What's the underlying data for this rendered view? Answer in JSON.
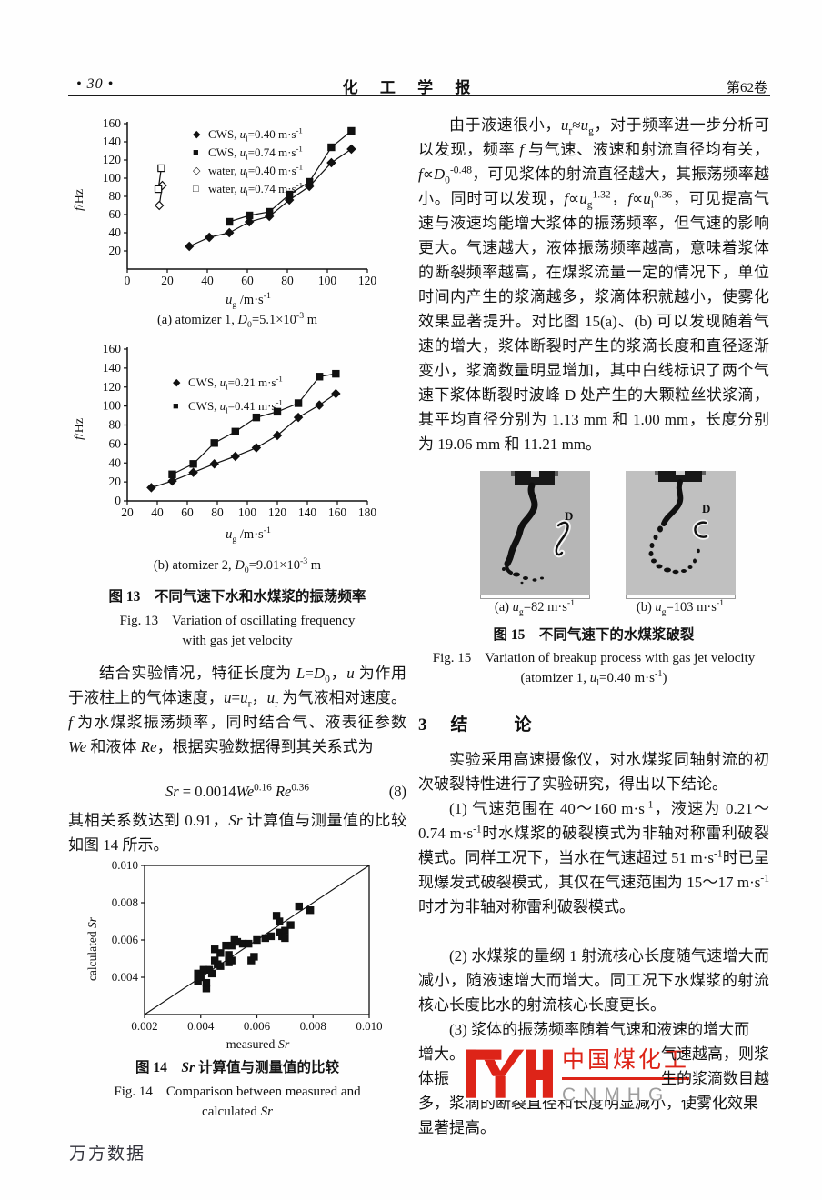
{
  "header": {
    "page_number": "• 30 •",
    "journal_title": "化 工 学 报",
    "volume": "第62卷"
  },
  "left_column": {
    "fig13": {
      "sub_a_html": "(a) atomizer 1, <i>D</i><sub>0</sub>=5.1×10<sup>-3</sup> m",
      "sub_b_html": "(b) atomizer 2, <i>D</i><sub>0</sub>=9.01×10<sup>-3</sup> m",
      "caption_zh": "图 13　不同气速下水和水煤浆的振荡频率",
      "caption_en_1": "Fig. 13　Variation of oscillating frequency",
      "caption_en_2": "with gas jet velocity"
    },
    "para1_html": "结合实验情况，特征长度为 <i>L</i>=<i>D</i><sub>0</sub>，<i>u</i> 为作用于液柱上的气体速度，<i>u</i>=<i>u</i><sub>r</sub>，<i>u</i><sub>r</sub> 为气液相对速度。<i>f</i> 为水煤浆振荡频率，同时结合气、液表征参数 <i>We</i> 和液体 <i>Re</i>，根据实验数据得到其关系式为",
    "equation": {
      "body_html": "<i>Sr</i> = 0.0014<i>We</i><sup>0.16</sup> <i>Re</i><sup>0.36</sup>",
      "number": "(8)"
    },
    "para2_html": "其相关系数达到 0.91，<i>Sr</i> 计算值与测量值的比较如图 14 所示。",
    "fig14": {
      "caption_zh_html": "图 14　<i>Sr</i> 计算值与测量值的比较",
      "caption_en_1": "Fig. 14　Comparison between measured and",
      "caption_en_2_html": "calculated <i>Sr</i>"
    }
  },
  "right_column": {
    "para1_html": "由于液速很小，<i>u</i><sub>r</sub>≈<i>u</i><sub>g</sub>，对于频率进一步分析可以发现，频率 <i>f</i> 与气速、液速和射流直径均有关，<i>f</i>∝<i>D</i><sub>0</sub><sup>-0.48</sup>，可见浆体的射流直径越大，其振荡频率越小。同时可以发现，<i>f</i>∝<i>u</i><sub>g</sub><sup>1.32</sup>，<i>f</i>∝<i>u</i><sub>l</sub><sup>0.36</sup>，可见提高气速与液速均能增大浆体的振荡频率，但气速的影响更大。气速越大，液体振荡频率越高，意味着浆体的断裂频率越高，在煤浆流量一定的情况下，单位时间内产生的浆滴越多，浆滴体积就越小，使雾化效果显著提升。对比图 15(a)、(b) 可以发现随着气速的增大，浆体断裂时产生的浆滴长度和直径逐渐变小，浆滴数量明显增加，其中白线标识了两个气速下浆体断裂时波峰 D 处产生的大颗粒丝状浆滴，其平均直径分别为 1.13 mm 和 1.00 mm，长度分别为 19.06 mm 和 11.21 mm。",
    "fig15": {
      "photo_d_label": "D",
      "sub_a_html": "(a) <i>u</i><sub>g</sub>=82 m·s<sup>-1</sup>",
      "sub_b_html": "(b) <i>u</i><sub>g</sub>=103 m·s<sup>-1</sup>",
      "caption_zh": "图 15　不同气速下的水煤浆破裂",
      "caption_en": "Fig. 15　Variation of breakup process with gas jet velocity",
      "caption_sub_html": "(atomizer 1, <i>u</i><sub>l</sub>=0.40 m·s<sup>-1</sup>)"
    },
    "section3": {
      "number": "3",
      "title": "结　论"
    },
    "conclusion_intro_html": "实验采用高速摄像仪，对水煤浆同轴射流的初次破裂特性进行了实验研究，得出以下结论。",
    "conclusion1_html": "(1) 气速范围在 40～160 m·s<sup>-1</sup>，液速为 0.21～0.74 m·s<sup>-1</sup>时水煤浆的破裂模式为非轴对称雷利破裂模式。同样工况下，当水在气速超过 51 m·s<sup>-1</sup>时已呈现爆发式破裂模式，其仅在气速范围为 15～17 m·s<sup>-1</sup>时才为非轴对称雷利破裂模式。",
    "conclusion2_html": "(2) 水煤浆的量纲 1 射流核心长度随气速增大而减小，随液速增大而增大。同工况下水煤浆的射流核心长度比水的射流核心长度更长。",
    "conclusion3": {
      "line1": "(3) 浆体的振荡频率随着气速和液速的增大而",
      "line2_left": "增大。",
      "line2_right": "气速越高，则浆",
      "line3_left": "体振",
      "line3_right": "生的浆滴数目越",
      "line4": "多，浆滴的断裂直径和长度明显减小，使雾化效果",
      "line5": "显著提高。"
    }
  },
  "watermark": {
    "zh": "中国煤化工",
    "en": "CNMHG",
    "red": "#dd2418",
    "gray": "#9d9d9d"
  },
  "footer": {
    "wanfang": "万方数据"
  },
  "chart_data": [
    {
      "id": "fig13a",
      "type": "line",
      "title": "(a) atomizer 1, D0 = 5.1×10^-3 m",
      "xlabel_html": "<i>u</i><sub>g</sub> /m·s<sup>-1</sup>",
      "ylabel_html": "<i>f</i>/Hz",
      "xlim": [
        0,
        120
      ],
      "ylim": [
        0,
        160
      ],
      "xticks": [
        0,
        20,
        40,
        60,
        80,
        100,
        120
      ],
      "yticks": [
        20,
        40,
        60,
        80,
        100,
        120,
        140,
        160
      ],
      "box": false,
      "legend_position": "top-right-inside",
      "series": [
        {
          "name_html": "CWS, <i>u</i><sub>l</sub>=0.40 m·s<sup>-1</sup>",
          "marker": "diamond-filled",
          "x": [
            31,
            41,
            51,
            61,
            71,
            81,
            91,
            102,
            112
          ],
          "y": [
            25,
            35,
            40,
            52,
            58,
            76,
            91,
            117,
            132
          ]
        },
        {
          "name_html": "CWS, <i>u</i><sub>l</sub>=0.74 m·s<sup>-1</sup>",
          "marker": "square-filled",
          "x": [
            51,
            61,
            71,
            81,
            91,
            102,
            112
          ],
          "y": [
            52,
            59,
            63,
            82,
            96,
            134,
            152
          ]
        },
        {
          "name_html": "water, <i>u</i><sub>l</sub>=0.40 m·s<sup>-1</sup>",
          "marker": "diamond-open",
          "x": [
            16,
            17.5
          ],
          "y": [
            70,
            92
          ]
        },
        {
          "name_html": "water, <i>u</i><sub>l</sub>=0.74 m·s<sup>-1</sup>",
          "marker": "square-open",
          "x": [
            15.5,
            17
          ],
          "y": [
            88,
            111
          ]
        }
      ]
    },
    {
      "id": "fig13b",
      "type": "line",
      "title": "(b) atomizer 2, D0 = 9.01×10^-3 m",
      "xlabel_html": "<i>u</i><sub>g</sub> /m·s<sup>-1</sup>",
      "ylabel_html": "<i>f</i>/Hz",
      "xlim": [
        20,
        180
      ],
      "ylim": [
        0,
        160
      ],
      "xticks": [
        20,
        40,
        60,
        80,
        100,
        120,
        140,
        160,
        180
      ],
      "yticks": [
        0,
        20,
        40,
        60,
        80,
        100,
        120,
        140,
        160
      ],
      "box": false,
      "legend_position": "upper-left-inside",
      "series": [
        {
          "name_html": "CWS, <i>u</i><sub>l</sub>=0.21 m·s<sup>-1</sup>",
          "marker": "diamond-filled",
          "x": [
            36,
            50,
            64,
            78,
            92,
            106,
            120,
            134,
            148,
            159
          ],
          "y": [
            14,
            21,
            30,
            39,
            47,
            56,
            69,
            88,
            101,
            113
          ]
        },
        {
          "name_html": "CWS, <i>u</i><sub>l</sub>=0.41 m·s<sup>-1</sup>",
          "marker": "square-filled",
          "x": [
            50,
            64,
            78,
            92,
            106,
            120,
            134,
            148,
            159
          ],
          "y": [
            28,
            39,
            61,
            73,
            88,
            94,
            103,
            131,
            134
          ]
        }
      ]
    },
    {
      "id": "fig14",
      "type": "scatter",
      "title": "Comparison between measured and calculated Sr",
      "xlabel_html": "measured <i>Sr</i>",
      "ylabel_html": "calculated <i>Sr</i>",
      "xlim": [
        0.002,
        0.01
      ],
      "ylim": [
        0.002,
        0.01
      ],
      "xticks": [
        0.002,
        0.004,
        0.006,
        0.008,
        0.01
      ],
      "yticks": [
        0.004,
        0.006,
        0.008,
        0.01
      ],
      "box": true,
      "diagonal": [
        [
          0.002,
          0.002
        ],
        [
          0.01,
          0.01
        ]
      ],
      "marker": "square-filled",
      "points": [
        [
          0.0039,
          0.0042
        ],
        [
          0.0039,
          0.0038
        ],
        [
          0.004,
          0.004
        ],
        [
          0.0041,
          0.0044
        ],
        [
          0.0042,
          0.0034
        ],
        [
          0.0042,
          0.0037
        ],
        [
          0.0043,
          0.0044
        ],
        [
          0.0044,
          0.0042
        ],
        [
          0.0045,
          0.0055
        ],
        [
          0.0045,
          0.0049
        ],
        [
          0.0046,
          0.0047
        ],
        [
          0.0047,
          0.0046
        ],
        [
          0.0047,
          0.0053
        ],
        [
          0.0049,
          0.0057
        ],
        [
          0.005,
          0.0048
        ],
        [
          0.005,
          0.0052
        ],
        [
          0.0051,
          0.0049
        ],
        [
          0.0051,
          0.0057
        ],
        [
          0.0052,
          0.006
        ],
        [
          0.0053,
          0.0059
        ],
        [
          0.0055,
          0.0058
        ],
        [
          0.0057,
          0.0058
        ],
        [
          0.0058,
          0.0049
        ],
        [
          0.0059,
          0.0051
        ],
        [
          0.006,
          0.006
        ],
        [
          0.0063,
          0.0061
        ],
        [
          0.0065,
          0.0062
        ],
        [
          0.0067,
          0.0073
        ],
        [
          0.0068,
          0.007
        ],
        [
          0.0068,
          0.0064
        ],
        [
          0.0069,
          0.0062
        ],
        [
          0.007,
          0.0065
        ],
        [
          0.007,
          0.0061
        ],
        [
          0.0072,
          0.0068
        ],
        [
          0.0075,
          0.0078
        ],
        [
          0.0079,
          0.0076
        ]
      ]
    }
  ]
}
